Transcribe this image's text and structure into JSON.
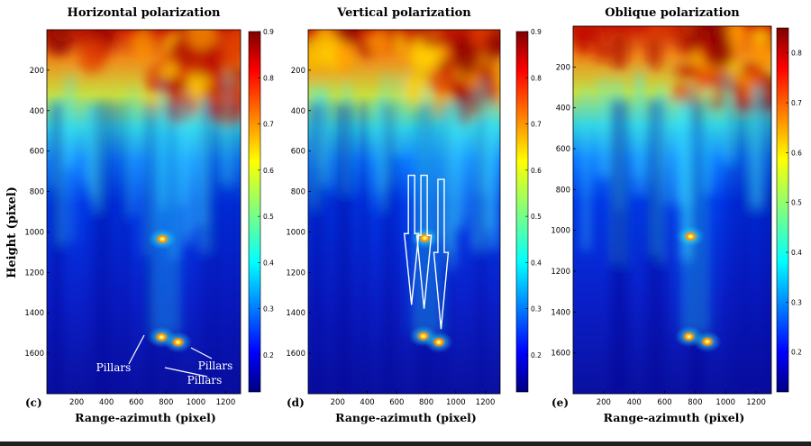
{
  "figure": {
    "ylabel": "Height (pixel)",
    "xlabel": "Range-azimuth (pixel)"
  },
  "colors": {
    "jet_low": "#00007f",
    "jet_mid": "#3cffc3",
    "jet_high": "#7f0000",
    "arrow": "#ffffff"
  },
  "chart_data": [
    {
      "type": "heatmap",
      "panel": "(c)",
      "title": "Horizontal polarization",
      "xlabel": "Range-azimuth (pixel)",
      "ylabel": "Height (pixel)",
      "xlim": [
        0,
        1300
      ],
      "ylim": [
        1800,
        0
      ],
      "xticks": [
        200,
        400,
        600,
        800,
        1000,
        1200
      ],
      "yticks": [
        200,
        400,
        600,
        800,
        1000,
        1200,
        1400,
        1600
      ],
      "colorbar": {
        "min": 0.12,
        "max": 0.9,
        "ticks": [
          0.2,
          0.3,
          0.4,
          0.5,
          0.6,
          0.7,
          0.8,
          0.9
        ]
      },
      "hotspots": [
        {
          "x": 775,
          "y": 1035
        },
        {
          "x": 770,
          "y": 1520
        },
        {
          "x": 880,
          "y": 1545
        }
      ],
      "annotations": [
        {
          "text": "Pillars"
        },
        {
          "text": "Pillars"
        },
        {
          "text": "Pillars"
        }
      ]
    },
    {
      "type": "heatmap",
      "panel": "(d)",
      "title": "Vertical polarization",
      "xlabel": "Range-azimuth (pixel)",
      "xlim": [
        0,
        1300
      ],
      "ylim": [
        1800,
        0
      ],
      "xticks": [
        200,
        400,
        600,
        800,
        1000,
        1200
      ],
      "yticks": [
        200,
        400,
        600,
        800,
        1000,
        1200,
        1400,
        1600
      ],
      "colorbar": {
        "min": 0.12,
        "max": 0.9,
        "ticks": [
          0.2,
          0.3,
          0.4,
          0.5,
          0.6,
          0.7,
          0.8,
          0.9
        ]
      },
      "hotspots": [
        {
          "x": 790,
          "y": 1030
        },
        {
          "x": 780,
          "y": 1515
        },
        {
          "x": 885,
          "y": 1545
        }
      ],
      "arrows": [
        {
          "x": 700,
          "y_from": 720,
          "y_to": 1360
        },
        {
          "x": 785,
          "y_from": 720,
          "y_to": 1380
        },
        {
          "x": 900,
          "y_from": 740,
          "y_to": 1480
        }
      ]
    },
    {
      "type": "heatmap",
      "panel": "(e)",
      "title": "Oblique polarization",
      "xlabel": "Range-azimuth (pixel)",
      "xlim": [
        0,
        1300
      ],
      "ylim": [
        1800,
        0
      ],
      "xticks": [
        200,
        400,
        600,
        800,
        1000,
        1200
      ],
      "yticks": [
        200,
        400,
        600,
        800,
        1000,
        1200,
        1400,
        1600
      ],
      "colorbar": {
        "min": 0.12,
        "max": 0.85,
        "ticks": [
          0.2,
          0.3,
          0.4,
          0.5,
          0.6,
          0.7,
          0.8
        ]
      },
      "hotspots": [
        {
          "x": 770,
          "y": 1030
        },
        {
          "x": 760,
          "y": 1520
        },
        {
          "x": 880,
          "y": 1545
        }
      ]
    }
  ]
}
